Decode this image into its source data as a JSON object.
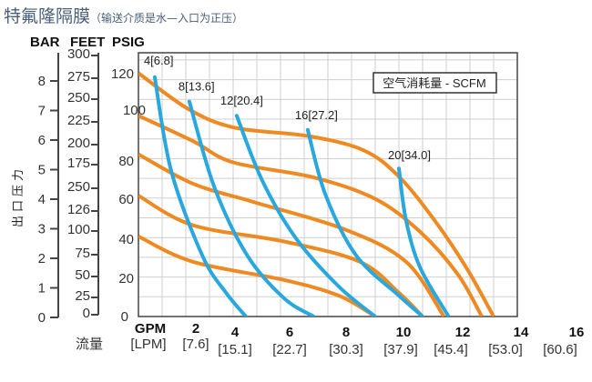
{
  "title": {
    "main": "特氟隆隔膜",
    "sub": "（输送介质是水—入口为正压）"
  },
  "chart_data": {
    "type": "line",
    "title": "特氟隆隔膜",
    "subtitle": "（输送介质是水—入口为正压）",
    "ylabel": "出口压力",
    "xlabel": "流量",
    "legend": {
      "text": "空气消耗量 - SCFM",
      "placement": "top-right"
    },
    "x_unit": "GPM",
    "xlim": [
      0,
      16
    ],
    "ylim_psig": [
      0,
      128
    ],
    "grid": true,
    "colors": {
      "pressure_curves": "#ef8a22",
      "air_curves": "#2aa8de",
      "grid": "#cfcfcf"
    },
    "axes": {
      "bar": {
        "label": "BAR",
        "ticks": [
          "0",
          "1",
          "2",
          "3",
          "4",
          "5",
          "6",
          "7",
          "8"
        ]
      },
      "feet": {
        "label": "FEET",
        "ticks": [
          "300",
          "275",
          "250",
          "225",
          "200",
          "175",
          "250",
          "126",
          "100",
          "75",
          "50",
          "25",
          "0"
        ]
      },
      "psig": {
        "label": "PSIG",
        "ticks": [
          "120",
          "100",
          "80",
          "60",
          "40",
          "20",
          "0"
        ]
      },
      "gpm": {
        "label": "GPM",
        "ticks": [
          "2",
          "4",
          "6",
          "8",
          "10",
          "12",
          "14",
          "16"
        ]
      },
      "lpm": {
        "label": "[LPM]",
        "ticks": [
          "[7.6]",
          "[15.1]",
          "[22.7]",
          "[30.3]",
          "[37.9]",
          "[45.4]",
          "[53.0]",
          "[60.6]"
        ]
      }
    },
    "pressure_series": [
      {
        "points": [
          [
            0,
            120
          ],
          [
            2.15,
            102
          ],
          [
            4.1,
            93
          ],
          [
            7.15,
            89
          ],
          [
            9.5,
            82
          ],
          [
            11,
            69
          ],
          [
            12.5,
            47.5
          ],
          [
            13.85,
            24
          ],
          [
            15,
            0
          ]
        ]
      },
      {
        "points": [
          [
            0,
            99
          ],
          [
            2.3,
            86.5
          ],
          [
            4,
            76
          ],
          [
            7.4,
            68.6
          ],
          [
            10,
            58
          ],
          [
            11.9,
            41.7
          ],
          [
            13.5,
            20.6
          ],
          [
            14.5,
            0
          ]
        ]
      },
      {
        "points": [
          [
            0,
            80
          ],
          [
            2.3,
            65.5
          ],
          [
            4.85,
            56.5
          ],
          [
            8.7,
            43
          ],
          [
            11.3,
            27
          ],
          [
            12.9,
            0
          ]
        ]
      },
      {
        "points": [
          [
            0,
            59.6
          ],
          [
            2.3,
            45
          ],
          [
            6.15,
            37
          ],
          [
            9.35,
            27
          ],
          [
            11,
            11.7
          ],
          [
            12,
            0
          ]
        ]
      },
      {
        "points": [
          [
            0,
            39.5
          ],
          [
            2.3,
            27
          ],
          [
            6.15,
            18
          ],
          [
            8.46,
            10.3
          ],
          [
            10,
            0
          ]
        ]
      }
    ],
    "air_series": [
      {
        "name": "4[6.8]",
        "points": [
          [
            0.69,
            118
          ],
          [
            1.38,
            72
          ],
          [
            2.7,
            30
          ],
          [
            3.7,
            11.7
          ],
          [
            4.54,
            0
          ]
        ]
      },
      {
        "name": "8[13.6]",
        "points": [
          [
            2.15,
            106
          ],
          [
            3.2,
            64
          ],
          [
            4.6,
            30
          ],
          [
            6.15,
            9
          ],
          [
            7.4,
            0
          ]
        ]
      },
      {
        "name": "12[20.4]",
        "points": [
          [
            4.15,
            99
          ],
          [
            5.23,
            67
          ],
          [
            6.65,
            38.6
          ],
          [
            8.46,
            14.8
          ],
          [
            10,
            0
          ]
        ]
      },
      {
        "name": "16[27.2]",
        "points": [
          [
            7.15,
            92
          ],
          [
            7.9,
            60
          ],
          [
            9.2,
            30
          ],
          [
            11,
            10.3
          ],
          [
            12,
            0
          ]
        ]
      },
      {
        "name": "20[34.0]",
        "points": [
          [
            11,
            73
          ],
          [
            11.3,
            47.5
          ],
          [
            11.9,
            24
          ],
          [
            13.1,
            0
          ]
        ]
      }
    ]
  }
}
